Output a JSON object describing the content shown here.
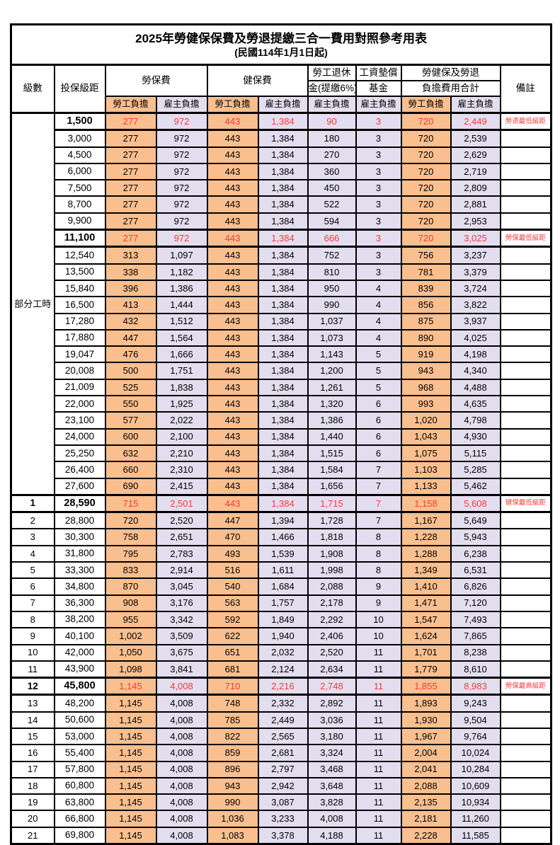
{
  "title": "2025年勞健保保費及勞退提繳三合一費用對照參考用表",
  "subtitle": "(民國114年1月1日起)",
  "columns": {
    "level": "級數",
    "bracket": "投保級距",
    "labor_insurance": "勞保費",
    "health_insurance": "健保費",
    "pension_line1": "勞工退休",
    "pension_line2": "金(提繳6%)",
    "wage_fund_line1": "工資墊償",
    "wage_fund_line2": "基金",
    "total_line1": "勞健保及勞退",
    "total_line2": "負擔費用合計",
    "employee": "勞工負擔",
    "employer": "雇主負擔",
    "remark": "備註"
  },
  "part_time_label": "部分工時",
  "part_time_rowspan": 23,
  "colors": {
    "employee_bg": "#FABF8F",
    "employer_bg": "#E2DEEF",
    "highlight_red": "#FF3838",
    "border": "#000000"
  },
  "rows": [
    {
      "level": "",
      "bracket": "1,500",
      "values": [
        "277",
        "972",
        "443",
        "1,384",
        "90",
        "3",
        "720",
        "2,449"
      ],
      "remark": "勞退最低級距",
      "highlight": true
    },
    {
      "level": "",
      "bracket": "3,000",
      "values": [
        "277",
        "972",
        "443",
        "1,384",
        "180",
        "3",
        "720",
        "2,539"
      ],
      "remark": "",
      "highlight": false
    },
    {
      "level": "",
      "bracket": "4,500",
      "values": [
        "277",
        "972",
        "443",
        "1,384",
        "270",
        "3",
        "720",
        "2,629"
      ],
      "remark": "",
      "highlight": false
    },
    {
      "level": "",
      "bracket": "6,000",
      "values": [
        "277",
        "972",
        "443",
        "1,384",
        "360",
        "3",
        "720",
        "2,719"
      ],
      "remark": "",
      "highlight": false
    },
    {
      "level": "",
      "bracket": "7,500",
      "values": [
        "277",
        "972",
        "443",
        "1,384",
        "450",
        "3",
        "720",
        "2,809"
      ],
      "remark": "",
      "highlight": false
    },
    {
      "level": "",
      "bracket": "8,700",
      "values": [
        "277",
        "972",
        "443",
        "1,384",
        "522",
        "3",
        "720",
        "2,881"
      ],
      "remark": "",
      "highlight": false
    },
    {
      "level": "",
      "bracket": "9,900",
      "values": [
        "277",
        "972",
        "443",
        "1,384",
        "594",
        "3",
        "720",
        "2,953"
      ],
      "remark": "",
      "highlight": false
    },
    {
      "level": "",
      "bracket": "11,100",
      "values": [
        "277",
        "972",
        "443",
        "1,384",
        "666",
        "3",
        "720",
        "3,025"
      ],
      "remark": "勞保最低級距",
      "highlight": true
    },
    {
      "level": "",
      "bracket": "12,540",
      "values": [
        "313",
        "1,097",
        "443",
        "1,384",
        "752",
        "3",
        "756",
        "3,237"
      ],
      "remark": "",
      "highlight": false
    },
    {
      "level": "",
      "bracket": "13,500",
      "values": [
        "338",
        "1,182",
        "443",
        "1,384",
        "810",
        "3",
        "781",
        "3,379"
      ],
      "remark": "",
      "highlight": false
    },
    {
      "level": "",
      "bracket": "15,840",
      "values": [
        "396",
        "1,386",
        "443",
        "1,384",
        "950",
        "4",
        "839",
        "3,724"
      ],
      "remark": "",
      "highlight": false
    },
    {
      "level": "",
      "bracket": "16,500",
      "values": [
        "413",
        "1,444",
        "443",
        "1,384",
        "990",
        "4",
        "856",
        "3,822"
      ],
      "remark": "",
      "highlight": false
    },
    {
      "level": "",
      "bracket": "17,280",
      "values": [
        "432",
        "1,512",
        "443",
        "1,384",
        "1,037",
        "4",
        "875",
        "3,937"
      ],
      "remark": "",
      "highlight": false
    },
    {
      "level": "",
      "bracket": "17,880",
      "values": [
        "447",
        "1,564",
        "443",
        "1,384",
        "1,073",
        "4",
        "890",
        "4,025"
      ],
      "remark": "",
      "highlight": false
    },
    {
      "level": "",
      "bracket": "19,047",
      "values": [
        "476",
        "1,666",
        "443",
        "1,384",
        "1,143",
        "5",
        "919",
        "4,198"
      ],
      "remark": "",
      "highlight": false
    },
    {
      "level": "",
      "bracket": "20,008",
      "values": [
        "500",
        "1,751",
        "443",
        "1,384",
        "1,200",
        "5",
        "943",
        "4,340"
      ],
      "remark": "",
      "highlight": false
    },
    {
      "level": "",
      "bracket": "21,009",
      "values": [
        "525",
        "1,838",
        "443",
        "1,384",
        "1,261",
        "5",
        "968",
        "4,488"
      ],
      "remark": "",
      "highlight": false
    },
    {
      "level": "",
      "bracket": "22,000",
      "values": [
        "550",
        "1,925",
        "443",
        "1,384",
        "1,320",
        "6",
        "993",
        "4,635"
      ],
      "remark": "",
      "highlight": false
    },
    {
      "level": "",
      "bracket": "23,100",
      "values": [
        "577",
        "2,022",
        "443",
        "1,384",
        "1,386",
        "6",
        "1,020",
        "4,798"
      ],
      "remark": "",
      "highlight": false
    },
    {
      "level": "",
      "bracket": "24,000",
      "values": [
        "600",
        "2,100",
        "443",
        "1,384",
        "1,440",
        "6",
        "1,043",
        "4,930"
      ],
      "remark": "",
      "highlight": false
    },
    {
      "level": "",
      "bracket": "25,250",
      "values": [
        "632",
        "2,210",
        "443",
        "1,384",
        "1,515",
        "6",
        "1,075",
        "5,115"
      ],
      "remark": "",
      "highlight": false
    },
    {
      "level": "",
      "bracket": "26,400",
      "values": [
        "660",
        "2,310",
        "443",
        "1,384",
        "1,584",
        "7",
        "1,103",
        "5,285"
      ],
      "remark": "",
      "highlight": false
    },
    {
      "level": "",
      "bracket": "27,600",
      "values": [
        "690",
        "2,415",
        "443",
        "1,384",
        "1,656",
        "7",
        "1,133",
        "5,462"
      ],
      "remark": "",
      "highlight": false
    },
    {
      "level": "1",
      "bracket": "28,590",
      "values": [
        "715",
        "2,501",
        "443",
        "1,384",
        "1,715",
        "7",
        "1,158",
        "5,608"
      ],
      "remark": "健保最低級距",
      "highlight": true
    },
    {
      "level": "2",
      "bracket": "28,800",
      "values": [
        "720",
        "2,520",
        "447",
        "1,394",
        "1,728",
        "7",
        "1,167",
        "5,649"
      ],
      "remark": "",
      "highlight": false
    },
    {
      "level": "3",
      "bracket": "30,300",
      "values": [
        "758",
        "2,651",
        "470",
        "1,466",
        "1,818",
        "8",
        "1,228",
        "5,943"
      ],
      "remark": "",
      "highlight": false
    },
    {
      "level": "4",
      "bracket": "31,800",
      "values": [
        "795",
        "2,783",
        "493",
        "1,539",
        "1,908",
        "8",
        "1,288",
        "6,238"
      ],
      "remark": "",
      "highlight": false
    },
    {
      "level": "5",
      "bracket": "33,300",
      "values": [
        "833",
        "2,914",
        "516",
        "1,611",
        "1,998",
        "8",
        "1,349",
        "6,531"
      ],
      "remark": "",
      "highlight": false
    },
    {
      "level": "6",
      "bracket": "34,800",
      "values": [
        "870",
        "3,045",
        "540",
        "1,684",
        "2,088",
        "9",
        "1,410",
        "6,826"
      ],
      "remark": "",
      "highlight": false
    },
    {
      "level": "7",
      "bracket": "36,300",
      "values": [
        "908",
        "3,176",
        "563",
        "1,757",
        "2,178",
        "9",
        "1,471",
        "7,120"
      ],
      "remark": "",
      "highlight": false
    },
    {
      "level": "8",
      "bracket": "38,200",
      "values": [
        "955",
        "3,342",
        "592",
        "1,849",
        "2,292",
        "10",
        "1,547",
        "7,493"
      ],
      "remark": "",
      "highlight": false
    },
    {
      "level": "9",
      "bracket": "40,100",
      "values": [
        "1,002",
        "3,509",
        "622",
        "1,940",
        "2,406",
        "10",
        "1,624",
        "7,865"
      ],
      "remark": "",
      "highlight": false
    },
    {
      "level": "10",
      "bracket": "42,000",
      "values": [
        "1,050",
        "3,675",
        "651",
        "2,032",
        "2,520",
        "11",
        "1,701",
        "8,238"
      ],
      "remark": "",
      "highlight": false
    },
    {
      "level": "11",
      "bracket": "43,900",
      "values": [
        "1,098",
        "3,841",
        "681",
        "2,124",
        "2,634",
        "11",
        "1,779",
        "8,610"
      ],
      "remark": "",
      "highlight": false
    },
    {
      "level": "12",
      "bracket": "45,800",
      "values": [
        "1,145",
        "4,008",
        "710",
        "2,216",
        "2,748",
        "11",
        "1,855",
        "8,983"
      ],
      "remark": "勞保最高級距",
      "highlight": true
    },
    {
      "level": "13",
      "bracket": "48,200",
      "values": [
        "1,145",
        "4,008",
        "748",
        "2,332",
        "2,892",
        "11",
        "1,893",
        "9,243"
      ],
      "remark": "",
      "highlight": false
    },
    {
      "level": "14",
      "bracket": "50,600",
      "values": [
        "1,145",
        "4,008",
        "785",
        "2,449",
        "3,036",
        "11",
        "1,930",
        "9,504"
      ],
      "remark": "",
      "highlight": false
    },
    {
      "level": "15",
      "bracket": "53,000",
      "values": [
        "1,145",
        "4,008",
        "822",
        "2,565",
        "3,180",
        "11",
        "1,967",
        "9,764"
      ],
      "remark": "",
      "highlight": false
    },
    {
      "level": "16",
      "bracket": "55,400",
      "values": [
        "1,145",
        "4,008",
        "859",
        "2,681",
        "3,324",
        "11",
        "2,004",
        "10,024"
      ],
      "remark": "",
      "highlight": false
    },
    {
      "level": "17",
      "bracket": "57,800",
      "values": [
        "1,145",
        "4,008",
        "896",
        "2,797",
        "3,468",
        "11",
        "2,041",
        "10,284"
      ],
      "remark": "",
      "highlight": false
    },
    {
      "level": "18",
      "bracket": "60,800",
      "values": [
        "1,145",
        "4,008",
        "943",
        "2,942",
        "3,648",
        "11",
        "2,088",
        "10,609"
      ],
      "remark": "",
      "highlight": false
    },
    {
      "level": "19",
      "bracket": "63,800",
      "values": [
        "1,145",
        "4,008",
        "990",
        "3,087",
        "3,828",
        "11",
        "2,135",
        "10,934"
      ],
      "remark": "",
      "highlight": false
    },
    {
      "level": "20",
      "bracket": "66,800",
      "values": [
        "1,145",
        "4,008",
        "1,036",
        "3,233",
        "4,008",
        "11",
        "2,181",
        "11,260"
      ],
      "remark": "",
      "highlight": false
    },
    {
      "level": "21",
      "bracket": "69,800",
      "values": [
        "1,145",
        "4,008",
        "1,083",
        "3,378",
        "4,188",
        "11",
        "2,228",
        "11,585"
      ],
      "remark": "",
      "highlight": false
    }
  ]
}
